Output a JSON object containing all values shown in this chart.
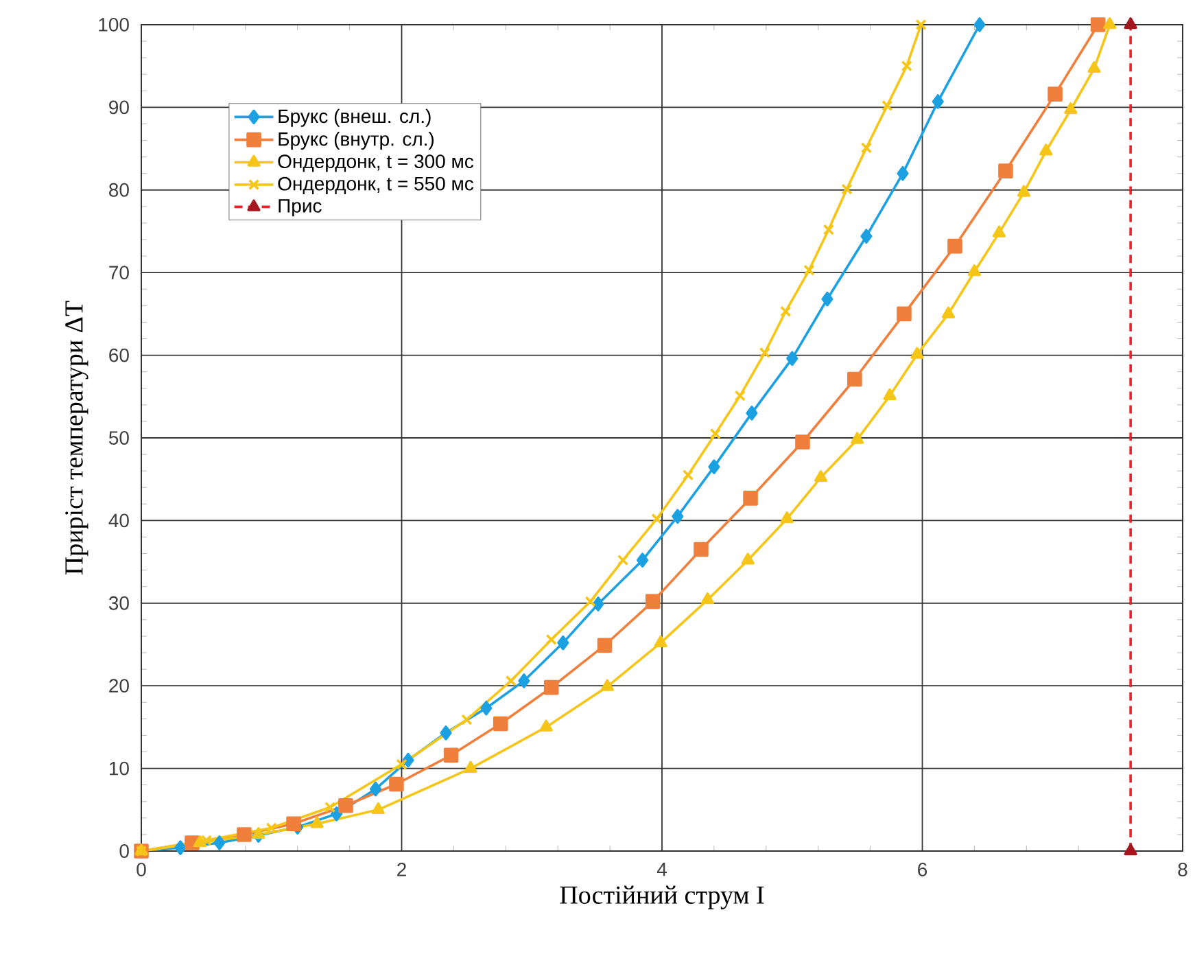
{
  "chart_data": {
    "type": "line",
    "xlabel": "Постійний струм I",
    "ylabel": "Приріст температури ΔT",
    "xlim": [
      0,
      8
    ],
    "ylim": [
      0,
      100
    ],
    "xticks": [
      0,
      2,
      4,
      6,
      8
    ],
    "yticks": [
      0,
      10,
      20,
      30,
      40,
      50,
      60,
      70,
      80,
      90,
      100
    ],
    "grid": true,
    "legend": "top left",
    "line_style": "solid",
    "series": [
      {
        "name": "Брукс (внеш. сл.)",
        "color": "#1ba1e2",
        "marker": "diamond",
        "x": [
          0,
          0.3,
          0.6,
          0.9,
          1.2,
          1.5,
          1.8,
          2.05,
          2.34,
          2.65,
          2.94,
          3.24,
          3.51,
          3.85,
          4.12,
          4.4,
          4.69,
          5.0,
          5.27,
          5.57,
          5.85,
          6.12,
          6.44
        ],
        "values": [
          0,
          0.4,
          1.0,
          1.9,
          2.9,
          4.5,
          7.5,
          11,
          14.3,
          17.3,
          20.6,
          25.2,
          29.9,
          35.2,
          40.5,
          46.5,
          53,
          59.6,
          66.8,
          74.4,
          82,
          90.7,
          100
        ]
      },
      {
        "name": "Брукс (внутр. сл.)",
        "color": "#f07f3c",
        "marker": "square",
        "x": [
          0,
          0.39,
          0.79,
          1.17,
          1.57,
          1.96,
          2.38,
          2.76,
          3.15,
          3.56,
          3.93,
          4.3,
          4.68,
          5.08,
          5.48,
          5.86,
          6.25,
          6.64,
          7.02,
          7.35
        ],
        "values": [
          0,
          1,
          2,
          3.3,
          5.5,
          8.1,
          11.6,
          15.4,
          19.8,
          24.9,
          30.2,
          36.5,
          42.7,
          49.5,
          57.1,
          65,
          73.2,
          82.3,
          91.6,
          100
        ]
      },
      {
        "name": "Ондердонк, t = 300 мс",
        "color": "#f5c518",
        "marker": "triangle",
        "x": [
          0,
          0.45,
          0.9,
          1.35,
          1.82,
          2.53,
          3.11,
          3.58,
          3.99,
          4.35,
          4.66,
          4.96,
          5.22,
          5.5,
          5.75,
          5.96,
          6.2,
          6.4,
          6.59,
          6.78,
          6.95,
          7.14,
          7.32,
          7.44
        ],
        "values": [
          0,
          1,
          2,
          3.3,
          5,
          10,
          15,
          19.9,
          25.2,
          30.4,
          35.2,
          40.2,
          45.2,
          49.8,
          55.1,
          60.1,
          65,
          70.1,
          74.8,
          79.7,
          84.7,
          89.7,
          94.7,
          100
        ]
      },
      {
        "name": "Ондердонк, t = 550 мс",
        "color": "#f5c518",
        "marker": "cross",
        "x": [
          0,
          0.5,
          1.0,
          1.45,
          2.0,
          2.5,
          2.84,
          3.15,
          3.45,
          3.7,
          3.96,
          4.2,
          4.41,
          4.6,
          4.79,
          4.95,
          5.13,
          5.28,
          5.42,
          5.57,
          5.73,
          5.88,
          5.99
        ],
        "values": [
          0,
          1.3,
          2.8,
          5.3,
          10.5,
          15.9,
          20.6,
          25.6,
          30.2,
          35.2,
          40.2,
          45.5,
          50.5,
          55.1,
          60.3,
          65.3,
          70.3,
          75.2,
          80.1,
          85.1,
          90.2,
          95,
          100
        ]
      },
      {
        "name": "Прис",
        "color": "#e8232b",
        "marker": "triangle",
        "line_style": "dashed",
        "x": [
          7.6,
          7.6
        ],
        "values": [
          0,
          100
        ]
      }
    ]
  }
}
